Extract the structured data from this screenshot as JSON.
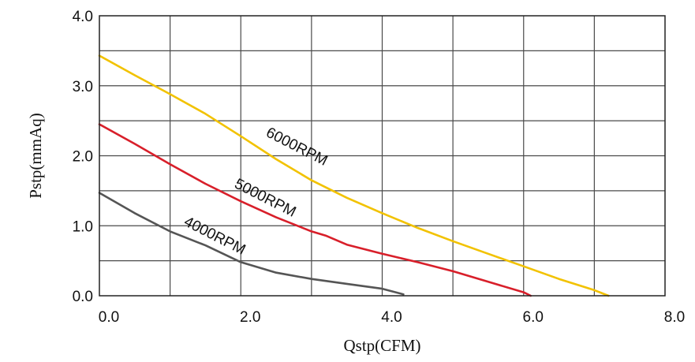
{
  "chart_data": {
    "type": "line",
    "title": "",
    "xlabel": "Qstp(CFM)",
    "ylabel": "Pstp(mmAq)",
    "xlim": [
      0,
      8
    ],
    "ylim": [
      0,
      4
    ],
    "x_ticks": [
      "0.0",
      "2.0",
      "4.0",
      "6.0",
      "8.0"
    ],
    "y_ticks": [
      "0.0",
      "1.0",
      "2.0",
      "3.0",
      "4.0"
    ],
    "grid": true,
    "series": [
      {
        "name": "6000RPM",
        "color": "#f2c200",
        "points": [
          [
            0,
            3.43
          ],
          [
            0.5,
            3.15
          ],
          [
            1.0,
            2.88
          ],
          [
            1.5,
            2.6
          ],
          [
            2.0,
            2.28
          ],
          [
            2.5,
            1.95
          ],
          [
            3.0,
            1.65
          ],
          [
            3.5,
            1.4
          ],
          [
            4.0,
            1.18
          ],
          [
            4.5,
            0.97
          ],
          [
            5.0,
            0.78
          ],
          [
            5.5,
            0.6
          ],
          [
            6.0,
            0.42
          ],
          [
            6.5,
            0.24
          ],
          [
            7.0,
            0.08
          ],
          [
            7.2,
            0.0
          ]
        ]
      },
      {
        "name": "5000RPM",
        "color": "#d81f2a",
        "points": [
          [
            0,
            2.45
          ],
          [
            0.5,
            2.17
          ],
          [
            1.0,
            1.88
          ],
          [
            1.5,
            1.6
          ],
          [
            2.0,
            1.35
          ],
          [
            2.5,
            1.12
          ],
          [
            3.0,
            0.92
          ],
          [
            3.2,
            0.86
          ],
          [
            3.5,
            0.73
          ],
          [
            4.0,
            0.6
          ],
          [
            4.5,
            0.48
          ],
          [
            5.0,
            0.35
          ],
          [
            5.5,
            0.2
          ],
          [
            6.0,
            0.05
          ],
          [
            6.1,
            0.0
          ]
        ]
      },
      {
        "name": "4000RPM",
        "color": "#555555",
        "points": [
          [
            0,
            1.47
          ],
          [
            0.5,
            1.18
          ],
          [
            1.0,
            0.92
          ],
          [
            1.5,
            0.72
          ],
          [
            2.0,
            0.48
          ],
          [
            2.5,
            0.33
          ],
          [
            3.0,
            0.24
          ],
          [
            3.5,
            0.17
          ],
          [
            4.0,
            0.1
          ],
          [
            4.3,
            0.02
          ]
        ]
      }
    ],
    "annotations": [
      {
        "text": "6000RPM",
        "series": "6000RPM"
      },
      {
        "text": "5000RPM",
        "series": "5000RPM"
      },
      {
        "text": "4000RPM",
        "series": "4000RPM"
      }
    ]
  }
}
